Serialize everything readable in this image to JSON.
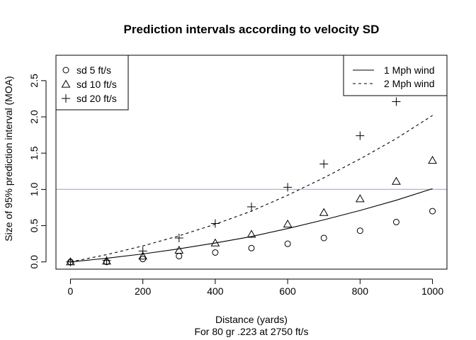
{
  "chart_data": {
    "type": "scatter",
    "title": "Prediction intervals according to velocity SD",
    "xlabel": "Distance (yards)",
    "xlabel2": "For 80 gr .223 at 2750 ft/s",
    "ylabel": "Size of 95% prediction interval (MOA)",
    "xlim": [
      -40,
      1040
    ],
    "ylim": [
      -0.1,
      2.85
    ],
    "x_ticks": [
      "0",
      "200",
      "400",
      "600",
      "800",
      "1000"
    ],
    "y_ticks": [
      "0.0",
      "0.5",
      "1.0",
      "1.5",
      "2.0",
      "2.5"
    ],
    "reference_line": {
      "y": 1.0,
      "color": "#a5b3ee"
    },
    "x": [
      0,
      100,
      200,
      300,
      400,
      500,
      600,
      700,
      800,
      900,
      1000
    ],
    "series": [
      {
        "name": "sd 5 ft/s",
        "marker": "circle",
        "values": [
          0.0,
          0.0,
          0.04,
          0.08,
          0.13,
          0.19,
          0.25,
          0.33,
          0.43,
          0.55,
          0.7
        ]
      },
      {
        "name": "sd 10 ft/s",
        "marker": "triangle",
        "values": [
          0.0,
          0.01,
          0.08,
          0.16,
          0.26,
          0.38,
          0.52,
          0.68,
          0.87,
          1.11,
          1.4
        ]
      },
      {
        "name": "sd 20 ft/s",
        "marker": "plus",
        "values": [
          0.0,
          0.02,
          0.15,
          0.33,
          0.53,
          0.76,
          1.03,
          1.35,
          1.74,
          2.21,
          null
        ]
      }
    ],
    "lines": [
      {
        "name": "1 Mph wind",
        "style": "solid",
        "values": [
          0.0,
          0.05,
          0.11,
          0.18,
          0.26,
          0.35,
          0.46,
          0.58,
          0.71,
          0.85,
          1.01
        ]
      },
      {
        "name": "2 Mph wind",
        "style": "dashed",
        "values": [
          0.0,
          0.1,
          0.22,
          0.36,
          0.52,
          0.7,
          0.92,
          1.16,
          1.42,
          1.7,
          2.02
        ]
      }
    ],
    "legend_left_position": "top-left",
    "legend_right_position": "top-right",
    "grid": false
  }
}
